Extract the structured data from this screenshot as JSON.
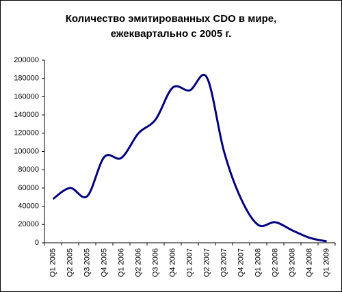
{
  "chart_data": {
    "type": "line",
    "title": [
      "Количество эмитированных CDO в мире,",
      "ежеквартально с 2005 г."
    ],
    "categories": [
      "Q1 2005",
      "Q2 2005",
      "Q3 2005",
      "Q4 2005",
      "Q1 2006",
      "Q2 2006",
      "Q3 2006",
      "Q4 2006",
      "Q1 2007",
      "Q2 2007",
      "Q3 2007",
      "Q4 2007",
      "Q1 2008",
      "Q2 2008",
      "Q3 2008",
      "Q4 2008",
      "Q1 2009"
    ],
    "values": [
      48000,
      60000,
      51000,
      94000,
      93000,
      120000,
      135000,
      170000,
      167000,
      181000,
      100000,
      48000,
      19500,
      22500,
      13500,
      5500,
      1500
    ],
    "color": "#000080",
    "ylim": [
      0,
      200000
    ],
    "yticks": [
      0,
      20000,
      40000,
      60000,
      80000,
      100000,
      120000,
      140000,
      160000,
      180000,
      200000
    ],
    "grid": false,
    "smooth": true
  }
}
